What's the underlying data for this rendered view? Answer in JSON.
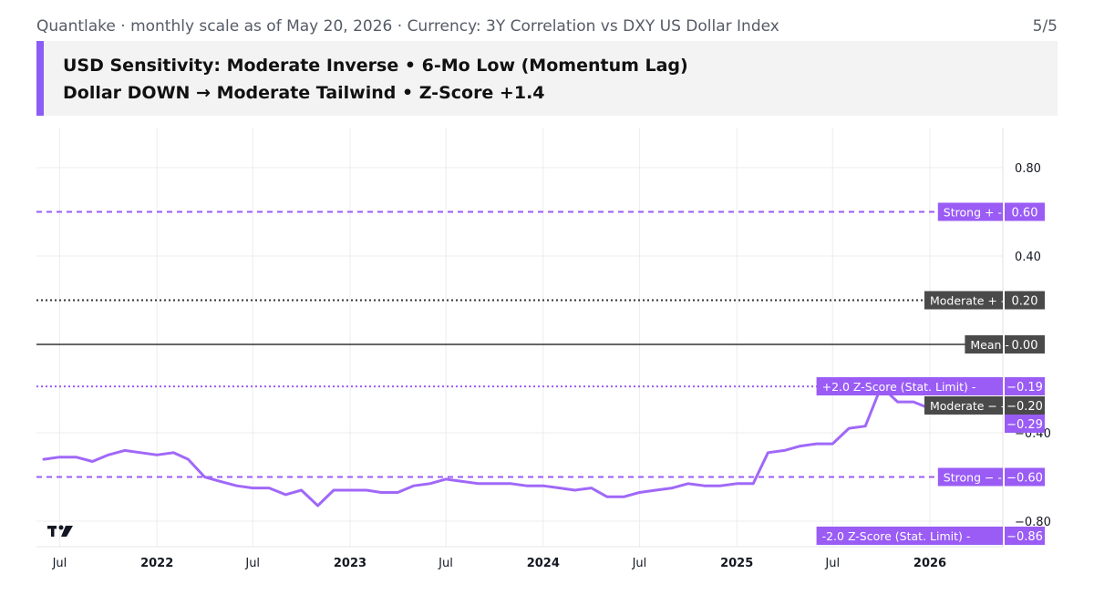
{
  "header": {
    "subtitle": "Quantlake · monthly scale as of May 20, 2026 · Currency: 3Y Correlation vs DXY US Dollar Index",
    "page": "5/5",
    "banner_line1": "USD Sensitivity: Moderate Inverse • 6-Mo Low (Momentum Lag)",
    "banner_line2": "Dollar DOWN → Moderate Tailwind • Z-Score +1.4"
  },
  "colors": {
    "series": "#a068f8",
    "purple_label": "#9a5cf5",
    "dark_label": "#4a4a4a",
    "mean_line": "#333333"
  },
  "icons": [
    "tradingview-logo-icon"
  ],
  "chart_data": {
    "type": "line",
    "ylim": [
      -0.88,
      0.98
    ],
    "y_ticks": [
      {
        "value": 0.8,
        "label": "0.80"
      },
      {
        "value": 0.4,
        "label": "0.40"
      },
      {
        "value": -0.4,
        "label": "−0.40"
      },
      {
        "value": -0.8,
        "label": "−0.80"
      }
    ],
    "x_ticks": [
      {
        "date": "2021-07-01",
        "label": "Jul",
        "bold": false
      },
      {
        "date": "2022-01-01",
        "label": "2022",
        "bold": true
      },
      {
        "date": "2022-07-01",
        "label": "Jul",
        "bold": false
      },
      {
        "date": "2023-01-01",
        "label": "2023",
        "bold": true
      },
      {
        "date": "2023-07-01",
        "label": "Jul",
        "bold": false
      },
      {
        "date": "2024-01-01",
        "label": "2024",
        "bold": true
      },
      {
        "date": "2024-07-01",
        "label": "Jul",
        "bold": false
      },
      {
        "date": "2025-01-01",
        "label": "2025",
        "bold": true
      },
      {
        "date": "2025-07-01",
        "label": "Jul",
        "bold": false
      },
      {
        "date": "2026-01-01",
        "label": "2026",
        "bold": true
      }
    ],
    "reference_lines": [
      {
        "value": 0.6,
        "label": "Strong +",
        "value_label": "0.60",
        "style": "dashed",
        "color": "purple"
      },
      {
        "value": 0.2,
        "label": "Moderate +",
        "value_label": "0.20",
        "style": "dotted",
        "color": "dark"
      },
      {
        "value": 0.0,
        "label": "Mean",
        "value_label": "0.00",
        "style": "solid",
        "color": "dark"
      },
      {
        "value": -0.19,
        "label": "+2.0 Z-Score (Stat. Limit)",
        "value_label": "−0.19",
        "style": "dotted",
        "color": "purple"
      },
      {
        "value": -0.2,
        "label": "Moderate −",
        "value_label": "−0.20",
        "style": "none",
        "color": "dark"
      },
      {
        "value": -0.6,
        "label": "Strong −",
        "value_label": "−0.60",
        "style": "dashed",
        "color": "purple"
      },
      {
        "value": -0.86,
        "label": "-2.0 Z-Score (Stat. Limit)",
        "value_label": "−0.86",
        "style": "none",
        "color": "purple"
      }
    ],
    "last_value": {
      "value": -0.29,
      "label": "−0.29"
    },
    "series": [
      {
        "x": [
          "2021-06-01",
          "2021-07-01",
          "2021-08-01",
          "2021-09-01",
          "2021-10-01",
          "2021-11-01",
          "2021-12-01",
          "2022-01-01",
          "2022-02-01",
          "2022-03-01",
          "2022-04-01",
          "2022-05-01",
          "2022-06-01",
          "2022-07-01",
          "2022-08-01",
          "2022-09-01",
          "2022-10-01",
          "2022-11-01",
          "2022-12-01",
          "2023-01-01",
          "2023-02-01",
          "2023-03-01",
          "2023-04-01",
          "2023-05-01",
          "2023-06-01",
          "2023-07-01",
          "2023-08-01",
          "2023-09-01",
          "2023-10-01",
          "2023-11-01",
          "2023-12-01",
          "2024-01-01",
          "2024-02-01",
          "2024-03-01",
          "2024-04-01",
          "2024-05-01",
          "2024-06-01",
          "2024-07-01",
          "2024-08-01",
          "2024-09-01",
          "2024-10-01",
          "2024-11-01",
          "2024-12-01",
          "2025-01-01",
          "2025-02-01",
          "2025-03-01",
          "2025-04-01",
          "2025-05-01",
          "2025-06-01",
          "2025-07-01",
          "2025-08-01",
          "2025-09-01",
          "2025-10-01",
          "2025-11-01",
          "2025-12-01",
          "2026-01-01"
        ],
        "y": [
          -0.52,
          -0.51,
          -0.51,
          -0.53,
          -0.5,
          -0.48,
          -0.49,
          -0.5,
          -0.49,
          -0.52,
          -0.6,
          -0.62,
          -0.64,
          -0.65,
          -0.65,
          -0.68,
          -0.66,
          -0.73,
          -0.66,
          -0.66,
          -0.66,
          -0.67,
          -0.67,
          -0.64,
          -0.63,
          -0.61,
          -0.62,
          -0.63,
          -0.63,
          -0.63,
          -0.64,
          -0.64,
          -0.65,
          -0.66,
          -0.65,
          -0.69,
          -0.69,
          -0.67,
          -0.66,
          -0.65,
          -0.63,
          -0.64,
          -0.64,
          -0.63,
          -0.63,
          -0.49,
          -0.48,
          -0.46,
          -0.45,
          -0.45,
          -0.38,
          -0.37,
          -0.19,
          -0.26,
          -0.26,
          -0.29
        ]
      }
    ]
  }
}
